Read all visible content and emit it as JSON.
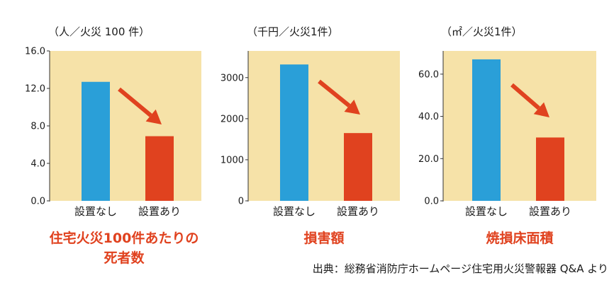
{
  "colors": {
    "background": "#f6e2a8",
    "bar_without": "#2a9fd8",
    "bar_with": "#e0421f",
    "arrow": "#e0421f",
    "title": "#e0421f"
  },
  "chart_data": [
    {
      "type": "bar",
      "unit": "（人／火災 100 件）",
      "categories": [
        "設置なし",
        "設置あり"
      ],
      "values": [
        12.7,
        6.9
      ],
      "yticks": [
        "16.0",
        "12.0",
        "8.0",
        "4.0",
        "0.0"
      ],
      "ylim": [
        0,
        16
      ],
      "title_lines": [
        "住宅火災100件あたりの",
        "死者数"
      ]
    },
    {
      "type": "bar",
      "unit": "（千円／火災1件）",
      "categories": [
        "設置なし",
        "設置あり"
      ],
      "values": [
        3320,
        1650
      ],
      "yticks": [
        "3000",
        "2000",
        "1000",
        "0"
      ],
      "ylim": [
        0,
        3650
      ],
      "title_lines": [
        "損害額"
      ]
    },
    {
      "type": "bar",
      "unit": "（㎡／火災1件）",
      "categories": [
        "設置なし",
        "設置あり"
      ],
      "values": [
        67,
        30
      ],
      "yticks": [
        "60.0",
        "40.0",
        "20.0",
        "0.0"
      ],
      "ylim": [
        0,
        71
      ],
      "title_lines": [
        "焼損床面積"
      ]
    }
  ],
  "source": "出典：総務省消防庁ホームページ住宅用火災警報器 Q&A より"
}
